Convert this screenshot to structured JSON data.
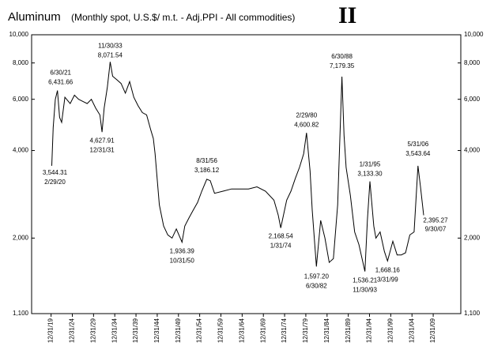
{
  "chart_data": {
    "type": "line",
    "title": "Aluminum",
    "subtitle": "(Monthly spot, U.S.$/ m.t. - Adj.PPI - All commodities)",
    "mark": "II",
    "log_scale": true,
    "color": "#000000",
    "ylim": [
      1100,
      10000
    ],
    "yticks": [
      {
        "value": 1100,
        "label": "1,100"
      },
      {
        "value": 2000,
        "label": "2,000"
      },
      {
        "value": 4000,
        "label": "4,000"
      },
      {
        "value": 6000,
        "label": "6,000"
      },
      {
        "value": 8000,
        "label": "8,000"
      },
      {
        "value": 10000,
        "label": "10,000"
      }
    ],
    "xlim": [
      "1915-06-01",
      "2016-07-01"
    ],
    "xticks": [
      {
        "value": "1919-12-31",
        "label": "12/31/19"
      },
      {
        "value": "1924-12-31",
        "label": "12/31/24"
      },
      {
        "value": "1929-12-31",
        "label": "12/31/29"
      },
      {
        "value": "1934-12-31",
        "label": "12/31/34"
      },
      {
        "value": "1939-12-31",
        "label": "12/31/39"
      },
      {
        "value": "1944-12-31",
        "label": "12/31/44"
      },
      {
        "value": "1949-12-31",
        "label": "12/31/49"
      },
      {
        "value": "1954-12-31",
        "label": "12/31/54"
      },
      {
        "value": "1959-12-31",
        "label": "12/31/59"
      },
      {
        "value": "1964-12-31",
        "label": "12/31/64"
      },
      {
        "value": "1969-12-31",
        "label": "12/31/69"
      },
      {
        "value": "1974-12-31",
        "label": "12/31/74"
      },
      {
        "value": "1979-12-31",
        "label": "12/31/79"
      },
      {
        "value": "1984-12-31",
        "label": "12/31/84"
      },
      {
        "value": "1989-12-31",
        "label": "12/31/89"
      },
      {
        "value": "1994-12-31",
        "label": "12/31/94"
      },
      {
        "value": "1999-12-31",
        "label": "12/31/99"
      },
      {
        "value": "2004-12-31",
        "label": "12/31/04"
      },
      {
        "value": "2009-12-31",
        "label": "12/31/09"
      }
    ],
    "x": [
      "1920-02-29",
      "1920-06-30",
      "1920-12-31",
      "1921-06-30",
      "1921-12-31",
      "1922-06-30",
      "1923-03-31",
      "1924-06-30",
      "1925-06-30",
      "1926-06-30",
      "1927-06-30",
      "1928-06-30",
      "1929-06-30",
      "1930-06-30",
      "1931-06-30",
      "1931-12-31",
      "1932-06-30",
      "1933-03-31",
      "1933-11-30",
      "1934-06-30",
      "1935-06-30",
      "1936-06-30",
      "1937-06-30",
      "1938-06-30",
      "1939-06-30",
      "1940-06-30",
      "1941-06-30",
      "1942-06-30",
      "1943-06-30",
      "1944-01-31",
      "1944-06-30",
      "1945-06-30",
      "1946-06-30",
      "1947-06-30",
      "1948-06-30",
      "1949-06-30",
      "1950-10-31",
      "1951-06-30",
      "1952-06-30",
      "1953-06-30",
      "1954-06-30",
      "1955-06-30",
      "1956-08-31",
      "1957-06-30",
      "1958-06-30",
      "1960-06-30",
      "1962-06-30",
      "1964-06-30",
      "1966-06-30",
      "1968-06-30",
      "1970-06-30",
      "1972-06-30",
      "1973-06-30",
      "1974-01-31",
      "1975-06-30",
      "1976-06-30",
      "1977-06-30",
      "1978-06-30",
      "1979-06-30",
      "1980-02-29",
      "1980-12-31",
      "1981-06-30",
      "1982-06-30",
      "1983-06-30",
      "1984-06-30",
      "1985-06-30",
      "1986-06-30",
      "1987-06-30",
      "1988-06-30",
      "1988-12-31",
      "1989-06-30",
      "1990-06-30",
      "1991-06-30",
      "1992-06-30",
      "1993-11-30",
      "1994-06-30",
      "1995-01-31",
      "1995-12-31",
      "1996-06-30",
      "1997-06-30",
      "1998-06-30",
      "1999-03-31",
      "2000-06-30",
      "2001-06-30",
      "2002-06-30",
      "2003-06-30",
      "2004-06-30",
      "2005-06-30",
      "2006-05-31",
      "2006-12-31",
      "2007-09-30"
    ],
    "values": [
      3544.31,
      4800,
      6000,
      6431.66,
      5200,
      5000,
      6100,
      5800,
      6200,
      6000,
      5900,
      5800,
      6000,
      5600,
      5300,
      4627.91,
      5600,
      6600,
      8071.54,
      7200,
      7000,
      6800,
      6300,
      6900,
      6100,
      5700,
      5400,
      5300,
      4700,
      4400,
      3900,
      2600,
      2200,
      2050,
      2000,
      2150,
      1936.39,
      2200,
      2350,
      2500,
      2650,
      2900,
      3186.12,
      3150,
      2850,
      2900,
      2950,
      2950,
      2950,
      3000,
      2900,
      2700,
      2400,
      2168.54,
      2700,
      2900,
      3200,
      3500,
      3900,
      4600.82,
      3400,
      2500,
      1597.2,
      2300,
      2000,
      1650,
      1700,
      2600,
      7179.35,
      4500,
      3500,
      2800,
      2100,
      1900,
      1536.21,
      2300,
      3133.3,
      2200,
      2000,
      2100,
      1800,
      1668.16,
      1950,
      1750,
      1750,
      1780,
      2050,
      2100,
      3543.64,
      3000,
      2395.27
    ],
    "annotations": [
      {
        "x": "1920-02-29",
        "value": 3544.31,
        "value_label": "3,544.31",
        "date_label": "2/29/20"
      },
      {
        "x": "1921-06-30",
        "value": 6431.66,
        "value_label": "6,431.66",
        "date_label": "6/30/21"
      },
      {
        "x": "1931-12-31",
        "value": 4627.91,
        "value_label": "4,627.91",
        "date_label": "12/31/31"
      },
      {
        "x": "1933-11-30",
        "value": 8071.54,
        "value_label": "8,071.54",
        "date_label": "11/30/33"
      },
      {
        "x": "1950-10-31",
        "value": 1936.39,
        "value_label": "1,936.39",
        "date_label": "10/31/50"
      },
      {
        "x": "1956-08-31",
        "value": 3186.12,
        "value_label": "3,186.12",
        "date_label": "8/31/56"
      },
      {
        "x": "1974-01-31",
        "value": 2168.54,
        "value_label": "2,168.54",
        "date_label": "1/31/74"
      },
      {
        "x": "1980-02-29",
        "value": 4600.82,
        "value_label": "4,600.82",
        "date_label": "2/29/80"
      },
      {
        "x": "1982-06-30",
        "value": 1597.2,
        "value_label": "1,597.20",
        "date_label": "6/30/82"
      },
      {
        "x": "1988-06-30",
        "value": 7179.35,
        "value_label": "7,179.35",
        "date_label": "6/30/88"
      },
      {
        "x": "1993-11-30",
        "value": 1536.21,
        "value_label": "1,536.21",
        "date_label": "11/30/93"
      },
      {
        "x": "1995-01-31",
        "value": 3133.3,
        "value_label": "3,133.30",
        "date_label": "1/31/95"
      },
      {
        "x": "1999-03-31",
        "value": 1668.16,
        "value_label": "1,668.16",
        "date_label": "3/31/99"
      },
      {
        "x": "2006-05-31",
        "value": 3543.64,
        "value_label": "3,543.64",
        "date_label": "5/31/06"
      },
      {
        "x": "2007-09-30",
        "value": 2395.27,
        "value_label": "2,395.27",
        "date_label": "9/30/07"
      }
    ]
  }
}
